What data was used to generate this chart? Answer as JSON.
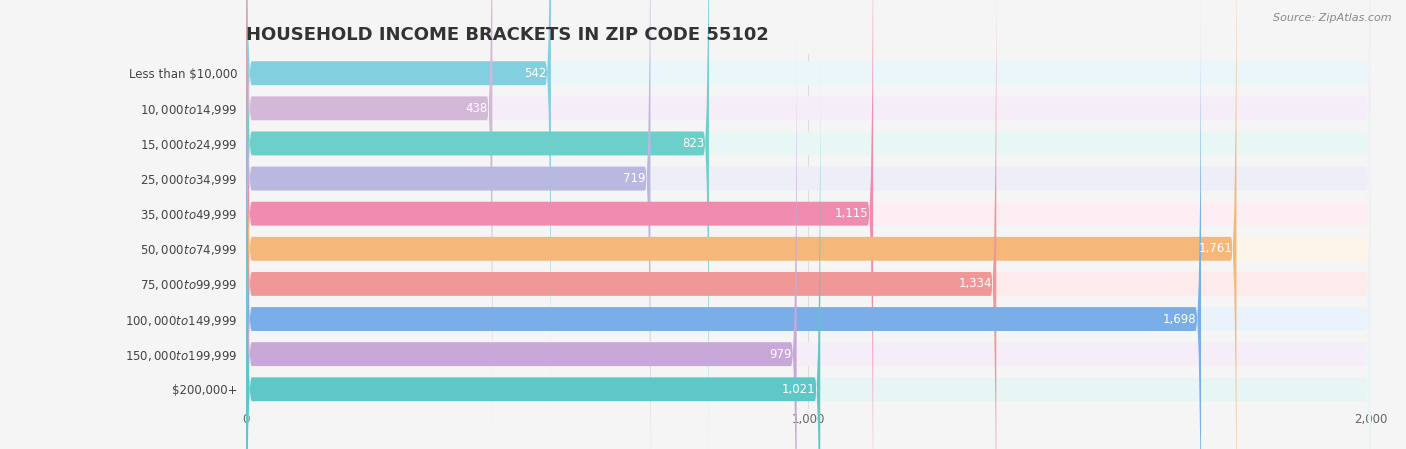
{
  "title": "HOUSEHOLD INCOME BRACKETS IN ZIP CODE 55102",
  "source": "Source: ZipAtlas.com",
  "categories": [
    "Less than $10,000",
    "$10,000 to $14,999",
    "$15,000 to $24,999",
    "$25,000 to $34,999",
    "$35,000 to $49,999",
    "$50,000 to $74,999",
    "$75,000 to $99,999",
    "$100,000 to $149,999",
    "$150,000 to $199,999",
    "$200,000+"
  ],
  "values": [
    542,
    438,
    823,
    719,
    1115,
    1761,
    1334,
    1698,
    979,
    1021
  ],
  "bar_colors": [
    "#82cfe0",
    "#d4b8d8",
    "#6dcfca",
    "#b8b8e0",
    "#f08cb0",
    "#f5b87a",
    "#f09898",
    "#7aaee8",
    "#c8a8d8",
    "#5ec8c8"
  ],
  "bar_bg_colors": [
    "#eaf6fa",
    "#f5eef8",
    "#e8f7f5",
    "#eeeef8",
    "#fdeef4",
    "#fef5ea",
    "#fdeaea",
    "#eaf2fc",
    "#f5eef8",
    "#e8f5f5"
  ],
  "xlim": [
    0,
    2000
  ],
  "xticks": [
    0,
    1000,
    2000
  ],
  "background_color": "#f5f5f5",
  "title_fontsize": 13,
  "bar_height": 0.68,
  "label_inside_threshold": 400
}
